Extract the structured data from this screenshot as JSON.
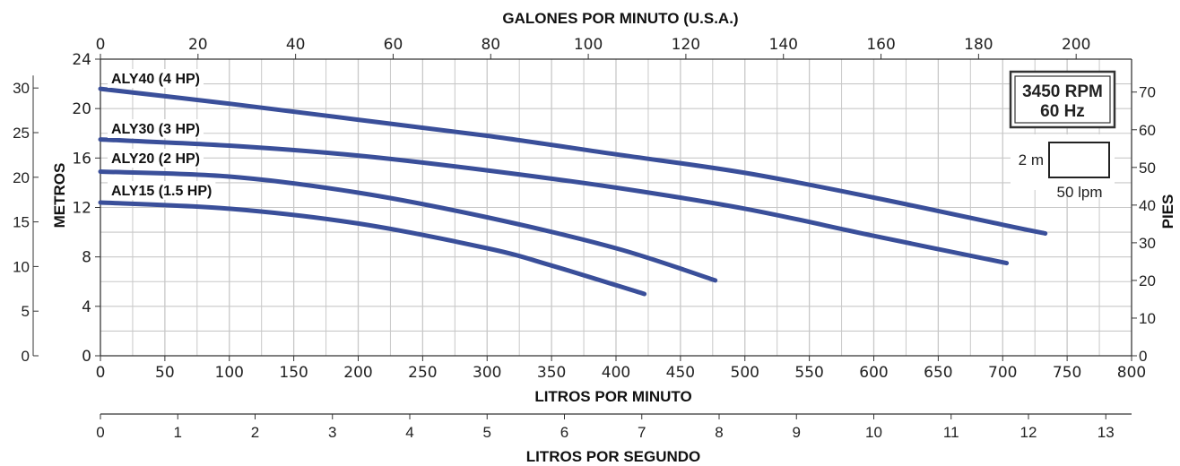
{
  "chart_data": {
    "type": "line",
    "title": "GALONES POR MINUTO (U.S.A.)",
    "xlabel": "LITROS POR MINUTO",
    "xlabel_secondary": "LITROS POR SEGUNDO",
    "xlabel_top": "GALONES POR MINUTO (U.S.A.)",
    "ylabel": "METROS",
    "ylabel_right": "PIES",
    "xlim": [
      0,
      800
    ],
    "ylim": [
      0,
      24
    ],
    "x_ticks": [
      "0",
      "50",
      "100",
      "150",
      "200",
      "250",
      "300",
      "350",
      "400",
      "450",
      "500",
      "550",
      "600",
      "650",
      "700",
      "750",
      "800"
    ],
    "y_ticks": [
      "0",
      "4",
      "8",
      "12",
      "16",
      "20",
      "24"
    ],
    "top_ticks": [
      "0",
      "20",
      "40",
      "60",
      "80",
      "100",
      "120",
      "140",
      "160",
      "180",
      "200"
    ],
    "top_tick_values": [
      0,
      20,
      40,
      60,
      80,
      100,
      120,
      140,
      160,
      180,
      200
    ],
    "left_outer_ticks": [
      "0",
      "5",
      "10",
      "15",
      "20",
      "25",
      "30"
    ],
    "left_outer_values": [
      0,
      5,
      10,
      15,
      20,
      25,
      30
    ],
    "right_ticks": [
      "0",
      "10",
      "20",
      "30",
      "40",
      "50",
      "60",
      "70"
    ],
    "right_tick_values": [
      0,
      10,
      20,
      30,
      40,
      50,
      60,
      70
    ],
    "bottom_lps_ticks": [
      "0",
      "1",
      "2",
      "3",
      "4",
      "5",
      "6",
      "7",
      "8",
      "9",
      "10",
      "11",
      "12",
      "13"
    ],
    "bottom_lps_values": [
      0,
      1,
      2,
      3,
      4,
      5,
      6,
      7,
      8,
      9,
      10,
      11,
      12,
      13
    ],
    "grid": true,
    "series": [
      {
        "name": "ALY40 (4 HP)",
        "x": [
          0,
          100,
          200,
          300,
          400,
          500,
          600,
          700,
          733
        ],
        "y": [
          21.6,
          20.4,
          19.1,
          17.8,
          16.3,
          14.8,
          12.8,
          10.6,
          9.9
        ]
      },
      {
        "name": "ALY30 (3 HP)",
        "x": [
          0,
          100,
          200,
          300,
          400,
          500,
          600,
          703
        ],
        "y": [
          17.5,
          17.0,
          16.2,
          15.0,
          13.6,
          11.9,
          9.7,
          7.5
        ]
      },
      {
        "name": "ALY20 (2 HP)",
        "x": [
          0,
          100,
          200,
          300,
          400,
          477
        ],
        "y": [
          14.9,
          14.5,
          13.2,
          11.2,
          8.7,
          6.1
        ]
      },
      {
        "name": "ALY15 (1.5 HP)",
        "x": [
          0,
          100,
          200,
          300,
          350,
          422
        ],
        "y": [
          12.4,
          11.9,
          10.7,
          8.7,
          7.3,
          5.0
        ]
      }
    ],
    "series_color": "#3a4f9a",
    "grid_color": "#c8c8c8",
    "annotation_box": {
      "line1": "3450 RPM",
      "line2": "60 Hz"
    },
    "scale_box": {
      "height_label": "2 m",
      "width_label": "50 lpm"
    }
  }
}
